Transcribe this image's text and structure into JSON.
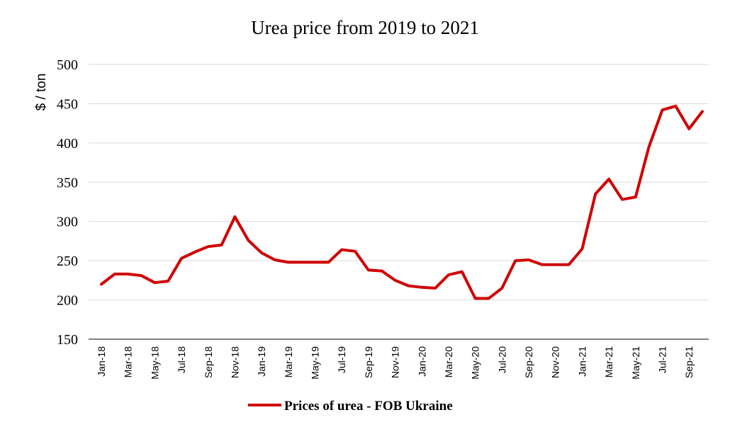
{
  "chart_data": {
    "type": "line",
    "title": "Urea price from 2019 to 2021",
    "xlabel": "",
    "ylabel": "$ / ton",
    "ylim": [
      150,
      500
    ],
    "yticks": [
      150,
      200,
      250,
      300,
      350,
      400,
      450,
      500
    ],
    "grid": true,
    "legend_position": "bottom",
    "colors": {
      "series": "#d00000",
      "grid": "#d9d9d9"
    },
    "x": [
      "Jan-18",
      "Feb-18",
      "Mar-18",
      "Apr-18",
      "May-18",
      "Jun-18",
      "Jul-18",
      "Aug-18",
      "Sep-18",
      "Oct-18",
      "Nov-18",
      "Dec-18",
      "Jan-19",
      "Feb-19",
      "Mar-19",
      "Apr-19",
      "May-19",
      "Jun-19",
      "Jul-19",
      "Aug-19",
      "Sep-19",
      "Oct-19",
      "Nov-19",
      "Dec-19",
      "Jan-20",
      "Feb-20",
      "Mar-20",
      "Apr-20",
      "May-20",
      "Jun-20",
      "Jul-20",
      "Aug-20",
      "Sep-20",
      "Oct-20",
      "Nov-20",
      "Dec-20",
      "Jan-21",
      "Feb-21",
      "Mar-21",
      "Apr-21",
      "May-21",
      "Jun-21",
      "Jul-21",
      "Aug-21",
      "Sep-21",
      "Oct-21"
    ],
    "tick_labels": [
      "Jan-18",
      "Mar-18",
      "May-18",
      "Jul-18",
      "Sep-18",
      "Nov-18",
      "Jan-19",
      "Mar-19",
      "May-19",
      "Jul-19",
      "Sep-19",
      "Nov-19",
      "Jan-20",
      "Mar-20",
      "May-20",
      "Jul-20",
      "Sep-20",
      "Nov-20",
      "Jan-21",
      "Mar-21",
      "May-21",
      "Jul-21",
      "Sep-21"
    ],
    "series": [
      {
        "name": "Prices of urea - FOB Ukraine",
        "values": [
          220,
          233,
          233,
          231,
          222,
          224,
          253,
          261,
          268,
          270,
          306,
          276,
          260,
          251,
          248,
          248,
          248,
          248,
          264,
          262,
          238,
          237,
          225,
          218,
          216,
          215,
          232,
          236,
          202,
          202,
          215,
          250,
          251,
          245,
          245,
          245,
          265,
          335,
          354,
          328,
          331,
          395,
          442,
          447,
          418,
          440
        ]
      }
    ]
  }
}
